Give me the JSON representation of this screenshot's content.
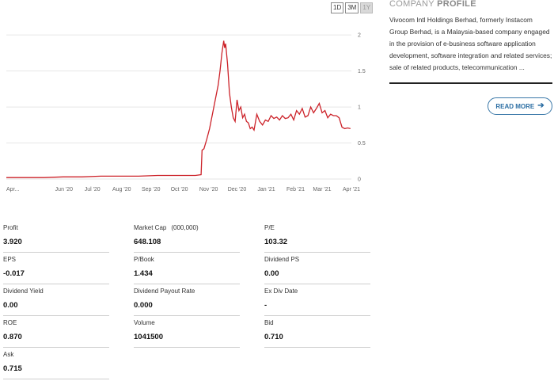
{
  "range_buttons": [
    "1D",
    "3M",
    "1Y"
  ],
  "active_range": "1Y",
  "chart_data": {
    "type": "line",
    "title": "",
    "xlabel": "",
    "ylabel": "",
    "ylim": [
      0,
      2.2
    ],
    "y_ticks": [
      0,
      0.5,
      1,
      1.5,
      2
    ],
    "y_tick_labels": [
      "0",
      "0.5",
      "1",
      "1.5",
      "2"
    ],
    "x_range": [
      0,
      365
    ],
    "x_ticks": [
      {
        "label": "Apr...",
        "x": 0
      },
      {
        "label": "Jun '20",
        "x": 61
      },
      {
        "label": "Jul '20",
        "x": 91
      },
      {
        "label": "Aug '20",
        "x": 122
      },
      {
        "label": "Sep '20",
        "x": 153
      },
      {
        "label": "Oct '20",
        "x": 183
      },
      {
        "label": "Nov '20",
        "x": 214
      },
      {
        "label": "Dec '20",
        "x": 244
      },
      {
        "label": "Jan '21",
        "x": 275
      },
      {
        "label": "Feb '21",
        "x": 306
      },
      {
        "label": "Mar '21",
        "x": 334
      },
      {
        "label": "Apr '21",
        "x": 365
      }
    ],
    "grid": true,
    "color": "#cc2229",
    "series": [
      {
        "x": [
          0,
          20,
          40,
          60,
          80,
          100,
          120,
          140,
          160,
          180,
          200,
          206,
          207,
          209,
          212,
          215,
          218,
          221,
          224,
          226,
          228,
          230,
          231,
          232,
          234,
          236,
          238,
          240,
          242,
          244,
          246,
          248,
          250,
          252,
          254,
          256,
          258,
          260,
          262,
          265,
          268,
          271,
          274,
          277,
          280,
          283,
          286,
          289,
          292,
          295,
          298,
          301,
          304,
          307,
          310,
          313,
          316,
          319,
          322,
          325,
          328,
          331,
          334,
          337,
          340,
          343,
          346,
          349,
          352,
          355,
          358,
          361,
          364
        ],
        "y": [
          0.02,
          0.02,
          0.02,
          0.03,
          0.03,
          0.04,
          0.04,
          0.04,
          0.05,
          0.05,
          0.05,
          0.06,
          0.4,
          0.42,
          0.55,
          0.7,
          0.9,
          1.1,
          1.3,
          1.5,
          1.75,
          1.92,
          1.82,
          1.88,
          1.6,
          1.2,
          1.0,
          0.85,
          0.8,
          1.1,
          0.95,
          1.0,
          0.85,
          0.9,
          0.8,
          0.78,
          0.7,
          0.72,
          0.68,
          0.9,
          0.8,
          0.75,
          0.82,
          0.8,
          0.88,
          0.84,
          0.86,
          0.82,
          0.88,
          0.84,
          0.85,
          0.9,
          0.82,
          0.95,
          0.9,
          0.98,
          0.86,
          0.88,
          1.0,
          0.92,
          0.98,
          1.05,
          0.92,
          0.95,
          0.85,
          0.9,
          0.88,
          0.88,
          0.85,
          0.72,
          0.7,
          0.71,
          0.7
        ]
      }
    ]
  },
  "profile": {
    "title_light": "COMPANY",
    "title_bold": "PROFILE",
    "description": "Vivocom Intl Holdings Berhad, formerly Instacom Group Berhad, is a Malaysia-based company engaged in the provision of e-business software application development, software integration and related services; sale of related products, telecommunication ...",
    "read_more": "READ MORE",
    "arrow_icon": "arrow-right-icon"
  },
  "stats": [
    {
      "label": "Profit",
      "value": "3.920"
    },
    {
      "label": "Market Cap",
      "unit": "(000,000)",
      "value": "648.108"
    },
    {
      "label": "P/E",
      "value": "103.32"
    },
    {
      "label": "EPS",
      "value": "-0.017"
    },
    {
      "label": "P/Book",
      "value": "1.434"
    },
    {
      "label": "Dividend PS",
      "value": "0.00"
    },
    {
      "label": "Dividend Yield",
      "value": "0.00"
    },
    {
      "label": "Dividend Payout Rate",
      "value": "0.000"
    },
    {
      "label": "Ex Div Date",
      "value": "-"
    },
    {
      "label": "ROE",
      "value": "0.870"
    },
    {
      "label": "Volume",
      "value": "1041500"
    },
    {
      "label": "Bid",
      "value": "0.710"
    },
    {
      "label": "Ask",
      "value": "0.715"
    }
  ]
}
